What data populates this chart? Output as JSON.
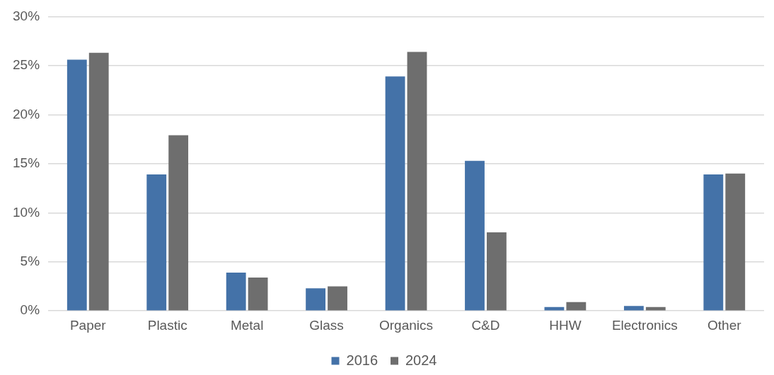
{
  "chart_data": {
    "type": "bar",
    "categories": [
      "Paper",
      "Plastic",
      "Metal",
      "Glass",
      "Organics",
      "C&D",
      "HHW",
      "Electronics",
      "Other"
    ],
    "series": [
      {
        "name": "2016",
        "color": "#4472a8",
        "values": [
          25.6,
          13.9,
          3.9,
          2.3,
          23.9,
          15.3,
          0.4,
          0.5,
          13.9
        ]
      },
      {
        "name": "2024",
        "color": "#6e6e6e",
        "values": [
          26.3,
          17.9,
          3.4,
          2.5,
          26.4,
          8.0,
          0.9,
          0.4,
          14.0
        ]
      }
    ],
    "ylim": [
      0,
      30
    ],
    "yticks": [
      {
        "value": 0,
        "label": "0%"
      },
      {
        "value": 5,
        "label": "5%"
      },
      {
        "value": 10,
        "label": "10%"
      },
      {
        "value": 15,
        "label": "15%"
      },
      {
        "value": 20,
        "label": "20%"
      },
      {
        "value": 25,
        "label": "25%"
      },
      {
        "value": 30,
        "label": "30%"
      }
    ],
    "grid": "y",
    "legend": "bottom"
  }
}
